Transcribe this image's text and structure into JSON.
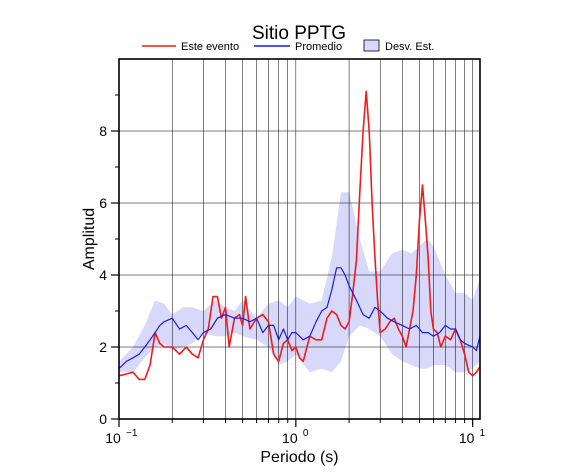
{
  "chart_data": {
    "type": "line",
    "title": "Sitio PPTG",
    "xlabel": "Periodo (s)",
    "ylabel": "Amplitud",
    "xscale": "log",
    "xlim": [
      0.1,
      11
    ],
    "ylim": [
      0,
      10
    ],
    "grid": true,
    "legend_position": "top",
    "x_ticks": [
      {
        "value": 0.1,
        "base": "10",
        "exp": "−1"
      },
      {
        "value": 1,
        "base": "10",
        "exp": "0"
      },
      {
        "value": 10,
        "base": "10",
        "exp": "1"
      }
    ],
    "y_ticks": [
      {
        "value": 0,
        "label": "0"
      },
      {
        "value": 2,
        "label": "2"
      },
      {
        "value": 4,
        "label": "4"
      },
      {
        "value": 6,
        "label": "6"
      },
      {
        "value": 8,
        "label": "8"
      }
    ],
    "legend": [
      {
        "label": "Este evento",
        "kind": "line",
        "color": "#ee1c1c"
      },
      {
        "label": "Promedio",
        "kind": "line",
        "color": "#1c1ce0"
      },
      {
        "label": "Desv. Est.",
        "kind": "box",
        "color": "#d8d8fa"
      }
    ],
    "band": {
      "name": "Desv. Est.",
      "color": "#d8d8fa",
      "x": [
        0.1,
        0.12,
        0.14,
        0.16,
        0.18,
        0.2,
        0.23,
        0.26,
        0.3,
        0.35,
        0.4,
        0.45,
        0.5,
        0.6,
        0.7,
        0.8,
        0.9,
        1.0,
        1.2,
        1.4,
        1.6,
        1.8,
        2.0,
        2.3,
        2.6,
        3.0,
        3.5,
        4.0,
        4.5,
        5.0,
        5.5,
        6.0,
        7.0,
        8.0,
        9.0,
        10.0,
        11.0
      ],
      "upper": [
        1.6,
        2.0,
        2.6,
        3.3,
        3.2,
        2.9,
        3.1,
        3.1,
        3.0,
        3.3,
        3.1,
        3.0,
        3.3,
        2.8,
        3.2,
        3.3,
        3.1,
        3.4,
        3.2,
        3.3,
        4.5,
        6.3,
        6.3,
        5.0,
        4.1,
        4.1,
        4.6,
        4.7,
        4.6,
        4.8,
        5.0,
        4.8,
        4.0,
        3.5,
        3.5,
        3.3,
        3.9
      ],
      "lower": [
        1.3,
        1.3,
        1.7,
        2.0,
        2.1,
        1.9,
        2.0,
        2.1,
        2.4,
        2.3,
        2.3,
        2.4,
        2.3,
        2.2,
        2.0,
        1.5,
        1.6,
        1.8,
        1.3,
        1.4,
        1.3,
        1.6,
        2.3,
        2.6,
        2.5,
        2.3,
        1.8,
        1.6,
        1.5,
        1.4,
        1.4,
        1.5,
        1.5,
        1.3,
        1.3,
        1.4,
        1.6
      ]
    },
    "series": [
      {
        "name": "Este evento",
        "color": "#ee1c1c",
        "x": [
          0.1,
          0.11,
          0.12,
          0.13,
          0.14,
          0.15,
          0.16,
          0.17,
          0.18,
          0.2,
          0.22,
          0.24,
          0.26,
          0.28,
          0.3,
          0.32,
          0.34,
          0.36,
          0.38,
          0.4,
          0.42,
          0.45,
          0.48,
          0.5,
          0.52,
          0.55,
          0.6,
          0.65,
          0.7,
          0.75,
          0.8,
          0.85,
          0.9,
          0.95,
          1.0,
          1.05,
          1.1,
          1.2,
          1.3,
          1.4,
          1.5,
          1.6,
          1.7,
          1.8,
          1.9,
          2.0,
          2.1,
          2.2,
          2.3,
          2.4,
          2.5,
          2.6,
          2.7,
          2.8,
          2.9,
          3.0,
          3.2,
          3.4,
          3.6,
          3.8,
          4.0,
          4.2,
          4.4,
          4.6,
          4.8,
          5.0,
          5.2,
          5.4,
          5.6,
          5.8,
          6.0,
          6.3,
          6.6,
          7.0,
          7.5,
          8.0,
          8.5,
          9.0,
          9.5,
          10.0,
          10.5,
          11.0
        ],
        "y": [
          1.2,
          1.25,
          1.3,
          1.1,
          1.1,
          1.5,
          2.4,
          2.1,
          2.0,
          2.0,
          1.8,
          2.0,
          1.8,
          1.7,
          2.2,
          2.5,
          3.4,
          3.4,
          2.8,
          3.1,
          2.0,
          2.8,
          2.9,
          2.6,
          3.4,
          2.5,
          2.8,
          2.9,
          2.7,
          1.8,
          1.6,
          2.1,
          2.2,
          1.9,
          2.0,
          1.7,
          1.6,
          2.3,
          2.2,
          2.2,
          2.8,
          3.0,
          2.9,
          2.6,
          2.5,
          2.7,
          3.5,
          4.4,
          6.3,
          8.0,
          9.1,
          8.0,
          6.0,
          4.5,
          3.3,
          2.4,
          2.5,
          2.7,
          2.8,
          2.5,
          2.3,
          2.0,
          2.5,
          3.0,
          4.0,
          5.5,
          6.5,
          5.5,
          4.5,
          3.0,
          2.5,
          2.4,
          2.0,
          2.3,
          2.2,
          2.5,
          2.2,
          1.8,
          1.3,
          1.2,
          1.3,
          1.45
        ]
      },
      {
        "name": "Promedio",
        "color": "#1c1ce0",
        "x": [
          0.1,
          0.11,
          0.12,
          0.13,
          0.14,
          0.15,
          0.16,
          0.17,
          0.18,
          0.2,
          0.22,
          0.24,
          0.26,
          0.28,
          0.3,
          0.33,
          0.36,
          0.4,
          0.45,
          0.5,
          0.55,
          0.6,
          0.65,
          0.7,
          0.75,
          0.8,
          0.85,
          0.9,
          0.95,
          1.0,
          1.1,
          1.2,
          1.3,
          1.4,
          1.5,
          1.6,
          1.7,
          1.8,
          1.9,
          2.0,
          2.2,
          2.4,
          2.6,
          2.8,
          3.0,
          3.3,
          3.6,
          4.0,
          4.4,
          4.8,
          5.2,
          5.6,
          6.0,
          6.5,
          7.0,
          7.5,
          8.0,
          8.5,
          9.0,
          10.0,
          10.5,
          11.0
        ],
        "y": [
          1.4,
          1.6,
          1.7,
          1.8,
          2.0,
          2.2,
          2.4,
          2.6,
          2.7,
          2.8,
          2.5,
          2.6,
          2.4,
          2.2,
          2.4,
          2.5,
          2.8,
          2.9,
          2.8,
          2.8,
          2.7,
          2.8,
          2.4,
          2.6,
          2.6,
          2.2,
          2.5,
          2.2,
          2.4,
          2.4,
          2.2,
          2.3,
          2.7,
          3.0,
          3.1,
          3.6,
          4.2,
          4.2,
          4.0,
          3.7,
          3.3,
          2.9,
          2.8,
          3.1,
          3.0,
          2.8,
          2.7,
          2.6,
          2.5,
          2.6,
          2.4,
          2.4,
          2.3,
          2.4,
          2.6,
          2.5,
          2.5,
          2.2,
          2.1,
          2.0,
          1.9,
          2.3
        ]
      }
    ]
  }
}
